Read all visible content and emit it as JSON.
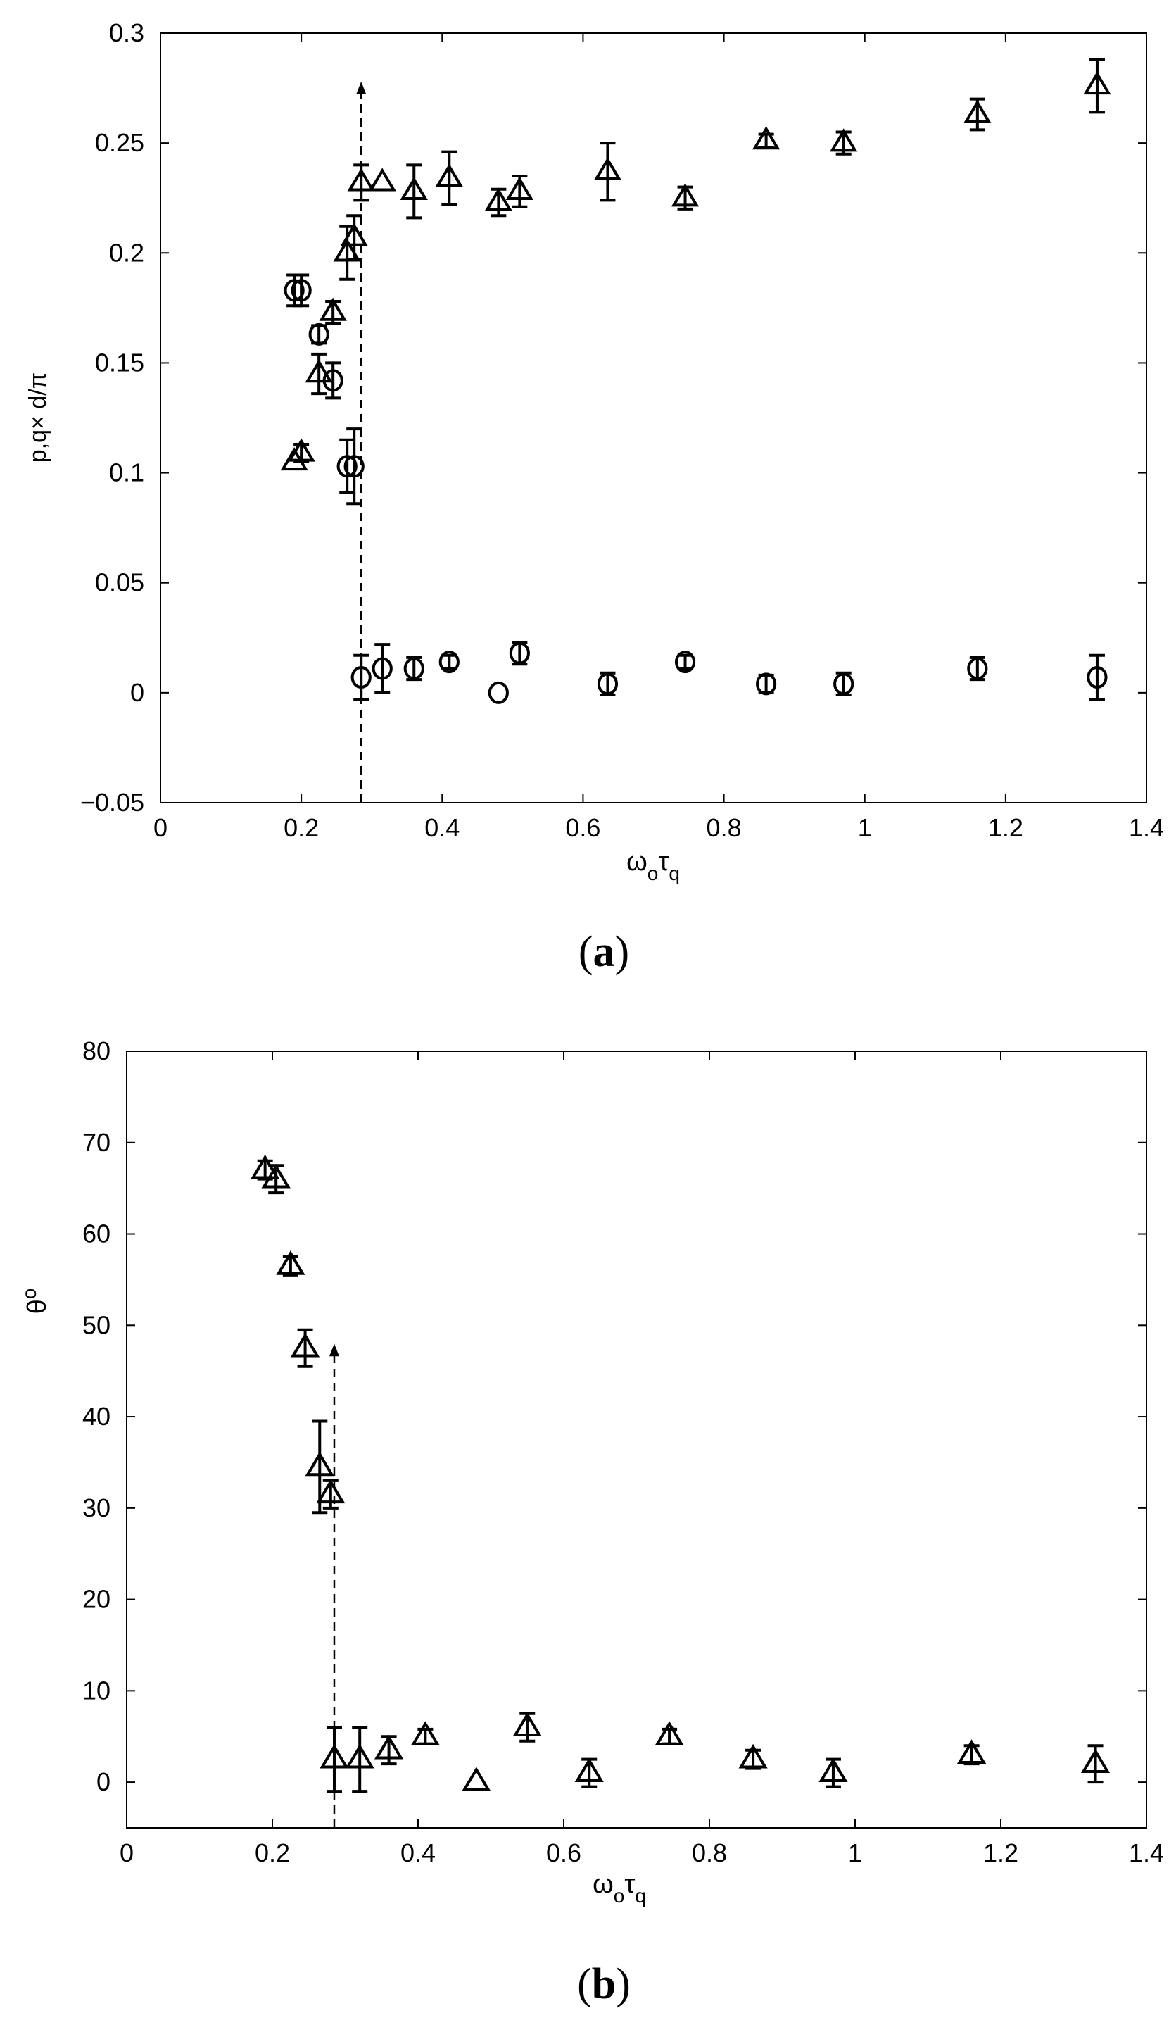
{
  "chart_data": [
    {
      "type": "scatter",
      "panel_label": "a",
      "ylabel": "p,q× d/π",
      "xlabel_main": "ω",
      "xlabel_sub1": "o",
      "xlabel_main2": "τ",
      "xlabel_sub2": "q",
      "xlim": [
        0,
        1.4
      ],
      "ylim": [
        -0.05,
        0.3
      ],
      "xticks": [
        0,
        0.2,
        0.4,
        0.6,
        0.8,
        1,
        1.2,
        1.4
      ],
      "xtick_labels": [
        "0",
        "0.2",
        "0.4",
        "0.6",
        "0.8",
        "1",
        "1.2",
        "1.4"
      ],
      "yticks": [
        -0.05,
        0,
        0.05,
        0.1,
        0.15,
        0.2,
        0.25,
        0.3
      ],
      "ytick_labels": [
        "−0.05",
        "0",
        "0.05",
        "0.1",
        "0.15",
        "0.2",
        "0.25",
        "0.3"
      ],
      "grid": false,
      "threshold_arrow": {
        "x": 0.285,
        "y_from": -0.05,
        "y_to": 0.278
      },
      "series": [
        {
          "marker": "triangle",
          "points": [
            {
              "x": 0.19,
              "y": 0.105,
              "err": 0
            },
            {
              "x": 0.2,
              "y": 0.109,
              "err": 0.004
            },
            {
              "x": 0.225,
              "y": 0.145,
              "err": 0.009
            },
            {
              "x": 0.245,
              "y": 0.173,
              "err": 0.005
            },
            {
              "x": 0.265,
              "y": 0.2,
              "err": 0.012
            },
            {
              "x": 0.275,
              "y": 0.207,
              "err": 0.01
            },
            {
              "x": 0.285,
              "y": 0.232,
              "err": 0.008
            },
            {
              "x": 0.315,
              "y": 0.232,
              "err": 0
            },
            {
              "x": 0.36,
              "y": 0.228,
              "err": 0.012
            },
            {
              "x": 0.41,
              "y": 0.234,
              "err": 0.012
            },
            {
              "x": 0.48,
              "y": 0.223,
              "err": 0.006
            },
            {
              "x": 0.51,
              "y": 0.228,
              "err": 0.007
            },
            {
              "x": 0.635,
              "y": 0.237,
              "err": 0.013
            },
            {
              "x": 0.745,
              "y": 0.225,
              "err": 0.005
            },
            {
              "x": 0.86,
              "y": 0.251,
              "err": 0.003
            },
            {
              "x": 0.97,
              "y": 0.25,
              "err": 0.005
            },
            {
              "x": 1.16,
              "y": 0.263,
              "err": 0.007
            },
            {
              "x": 1.33,
              "y": 0.276,
              "err": 0.012
            }
          ]
        },
        {
          "marker": "circle",
          "points": [
            {
              "x": 0.19,
              "y": 0.183,
              "err": 0.007
            },
            {
              "x": 0.2,
              "y": 0.183,
              "err": 0.007
            },
            {
              "x": 0.225,
              "y": 0.163,
              "err": 0.004
            },
            {
              "x": 0.245,
              "y": 0.142,
              "err": 0.008
            },
            {
              "x": 0.265,
              "y": 0.103,
              "err": 0.012
            },
            {
              "x": 0.275,
              "y": 0.103,
              "err": 0.017
            },
            {
              "x": 0.285,
              "y": 0.007,
              "err": 0.01
            },
            {
              "x": 0.315,
              "y": 0.011,
              "err": 0.011
            },
            {
              "x": 0.36,
              "y": 0.011,
              "err": 0.005
            },
            {
              "x": 0.41,
              "y": 0.014,
              "err": 0.003
            },
            {
              "x": 0.48,
              "y": 0.0,
              "err": 0
            },
            {
              "x": 0.51,
              "y": 0.018,
              "err": 0.005
            },
            {
              "x": 0.635,
              "y": 0.004,
              "err": 0.005
            },
            {
              "x": 0.745,
              "y": 0.014,
              "err": 0.003
            },
            {
              "x": 0.86,
              "y": 0.004,
              "err": 0.004
            },
            {
              "x": 0.97,
              "y": 0.004,
              "err": 0.005
            },
            {
              "x": 1.16,
              "y": 0.011,
              "err": 0.005
            },
            {
              "x": 1.33,
              "y": 0.007,
              "err": 0.01
            }
          ]
        }
      ]
    },
    {
      "type": "scatter",
      "panel_label": "b",
      "ylabel_main": "θ",
      "ylabel_sup": "o",
      "xlabel_main": "ω",
      "xlabel_sub1": "o",
      "xlabel_main2": "τ",
      "xlabel_sub2": "q",
      "xlim": [
        0,
        1.4
      ],
      "ylim": [
        -5,
        80
      ],
      "xticks": [
        0,
        0.2,
        0.4,
        0.6,
        0.8,
        1,
        1.2,
        1.4
      ],
      "xtick_labels": [
        "0",
        "0.2",
        "0.4",
        "0.6",
        "0.8",
        "1",
        "1.2",
        "1.4"
      ],
      "yticks": [
        0,
        10,
        20,
        30,
        40,
        50,
        60,
        70,
        80
      ],
      "ytick_labels": [
        "0",
        "10",
        "20",
        "30",
        "40",
        "50",
        "60",
        "70",
        "80"
      ],
      "grid": false,
      "threshold_arrow": {
        "x": 0.285,
        "y_from": -5,
        "y_to": 48
      },
      "series": [
        {
          "marker": "triangle",
          "points": [
            {
              "x": 0.19,
              "y": 67,
              "err": 1
            },
            {
              "x": 0.205,
              "y": 66,
              "err": 1.5
            },
            {
              "x": 0.225,
              "y": 56.5,
              "err": 1
            },
            {
              "x": 0.245,
              "y": 47.5,
              "err": 2
            },
            {
              "x": 0.265,
              "y": 34.5,
              "err": 5
            },
            {
              "x": 0.28,
              "y": 31.5,
              "err": 1.5
            },
            {
              "x": 0.285,
              "y": 2.5,
              "err": 3.5
            },
            {
              "x": 0.32,
              "y": 2.5,
              "err": 3.5
            },
            {
              "x": 0.36,
              "y": 3.5,
              "err": 1.5
            },
            {
              "x": 0.41,
              "y": 5,
              "err": 0.8
            },
            {
              "x": 0.48,
              "y": 0,
              "err": 0
            },
            {
              "x": 0.55,
              "y": 6,
              "err": 1.5
            },
            {
              "x": 0.635,
              "y": 1,
              "err": 1.5
            },
            {
              "x": 0.745,
              "y": 5,
              "err": 0.8
            },
            {
              "x": 0.86,
              "y": 2.5,
              "err": 1
            },
            {
              "x": 0.97,
              "y": 1,
              "err": 1.5
            },
            {
              "x": 1.16,
              "y": 3,
              "err": 1
            },
            {
              "x": 1.33,
              "y": 2,
              "err": 2
            }
          ]
        }
      ]
    }
  ]
}
